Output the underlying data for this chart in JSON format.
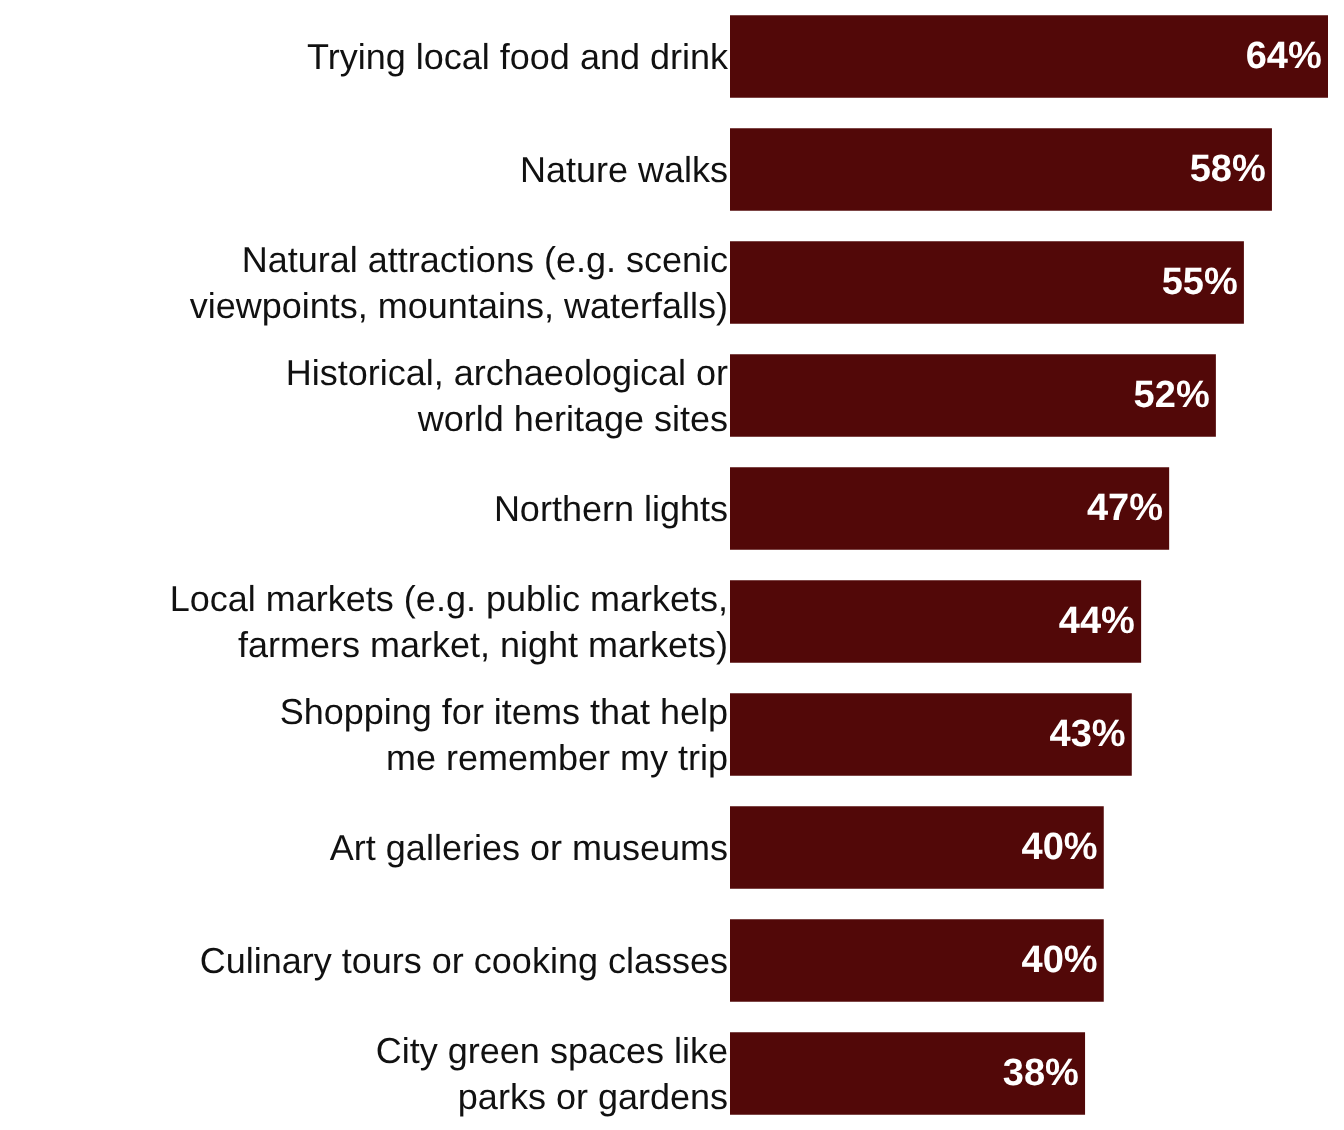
{
  "chart_data": {
    "type": "bar",
    "orientation": "horizontal",
    "categories": [
      "Trying local food and drink",
      "Nature walks",
      "Natural attractions (e.g. scenic\nviewpoints, mountains, waterfalls)",
      "Historical, archaeological or\nworld heritage sites",
      "Northern lights",
      "Local markets (e.g. public markets,\nfarmers market, night markets)",
      "Shopping for items that help\nme remember my trip",
      "Art galleries or museums",
      "Culinary tours or cooking classes",
      "City green spaces like\nparks or gardens"
    ],
    "values": [
      64,
      58,
      55,
      52,
      47,
      44,
      43,
      40,
      40,
      38
    ],
    "value_labels": [
      "64%",
      "58%",
      "55%",
      "52%",
      "47%",
      "44%",
      "43%",
      "40%",
      "40%",
      "38%"
    ],
    "color": "#520808",
    "xlim": [
      0,
      64
    ],
    "tick_labels": "y"
  }
}
